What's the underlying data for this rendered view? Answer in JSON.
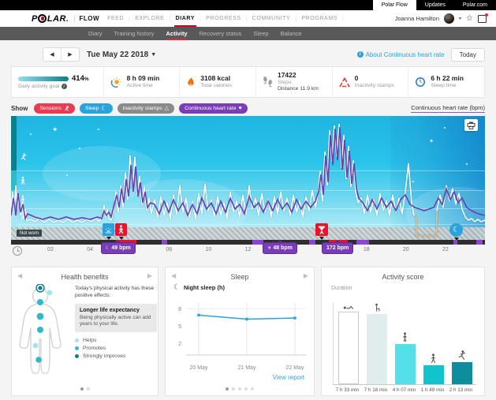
{
  "topbar": {
    "tabs": [
      "Polar Flow",
      "Updates",
      "Polar.com"
    ],
    "active_tab": "Polar Flow"
  },
  "nav": {
    "logo": {
      "p": "P",
      "lar": "LAR",
      "dot": ".",
      "flow": "FLOW"
    },
    "items": [
      "FEED",
      "EXPLORE",
      "DIARY",
      "PROGRESS",
      "COMMUNITY",
      "PROGRAMS"
    ],
    "active": "DIARY",
    "user_name": "Joanna Hamilton"
  },
  "subnav": {
    "items": [
      "Diary",
      "Training history",
      "Activity",
      "Recovery status",
      "Sleep",
      "Balance"
    ],
    "active": "Activity"
  },
  "date_row": {
    "date": "Tue May 22 2018",
    "about_link": "About Continuous heart rate",
    "today_button": "Today"
  },
  "stats": {
    "goal": {
      "value": "414",
      "unit": "%",
      "label": "Daily activity goal"
    },
    "active_time": {
      "value": "8 h 09 min",
      "label": "Active time"
    },
    "calories": {
      "value": "3108 kcal",
      "label": "Total calories"
    },
    "steps": {
      "value": "17422",
      "label": "Steps",
      "sub": "Distance 11.9 km"
    },
    "inactivity": {
      "value": "0",
      "label": "Inactivity stamps"
    },
    "sleep": {
      "value": "6 h 22 min",
      "label": "Sleep time"
    }
  },
  "filters": {
    "show_label": "Show",
    "pills": [
      {
        "label": "Sessions",
        "color": "#e83c55",
        "icon": "runner-icon"
      },
      {
        "label": "Sleep",
        "color": "#2aa3dc",
        "icon": "moon-icon"
      },
      {
        "label": "Inactivity stamps",
        "color": "#8a8a8a",
        "icon": "warning-icon"
      },
      {
        "label": "Continuous heart rate",
        "color": "#7a3db8",
        "icon": "heart-icon"
      }
    ],
    "axis_link": "Continuous heart rate (bpm)"
  },
  "chart": {
    "not_worn_label": "Not worn",
    "hours": [
      "02",
      "04",
      "06",
      "08",
      "10",
      "12",
      "14",
      "16",
      "18",
      "20",
      "22"
    ],
    "bpm_markers": [
      {
        "label": "49 bpm",
        "icon": "moon"
      },
      {
        "label": "48 bpm",
        "icon": "sun"
      },
      {
        "label": "172 bpm",
        "icon": ""
      }
    ]
  },
  "cards": {
    "health": {
      "title": "Health benefits",
      "intro": "Today's physical activity has these positive effects:",
      "highlight_title": "Longer life expectancy",
      "highlight_body": "Being physically active can add years to your life.",
      "legend": [
        {
          "label": "Helps",
          "color": "#9fe4ef"
        },
        {
          "label": "Promotes",
          "color": "#2fb9c9"
        },
        {
          "label": "Strongly improves",
          "color": "#0b7f8c"
        }
      ]
    },
    "sleep": {
      "title": "Sleep",
      "series_label": "Night sleep (h)",
      "view_report": "View report"
    },
    "score": {
      "title": "Activity score",
      "duration_label": "Duration"
    }
  },
  "chart_data": [
    {
      "type": "line",
      "title": "Continuous heart rate (bpm)",
      "x_hours": [
        "02",
        "04",
        "06",
        "08",
        "10",
        "12",
        "14",
        "16",
        "18",
        "20",
        "22"
      ],
      "annotations": [
        "49 bpm (night low)",
        "48 bpm (day low)",
        "172 bpm (max)"
      ],
      "overlays": [
        "Sessions",
        "Sleep",
        "Inactivity stamps",
        "Not worn"
      ]
    },
    {
      "type": "line",
      "title": "Night sleep (h)",
      "categories": [
        "20 May",
        "21 May",
        "22 May"
      ],
      "values": [
        6.9,
        6.2,
        6.4
      ],
      "yticks": [
        8,
        5,
        2
      ],
      "ylim": [
        0,
        9
      ],
      "line_color": "#2aa3dc"
    },
    {
      "type": "bar",
      "title": "Activity score — Duration",
      "categories": [
        "7 h 33 min",
        "7 h 18 min",
        "4 h 07 min",
        "1 h 49 min",
        "2 h 13 min"
      ],
      "values_minutes": [
        453,
        438,
        247,
        109,
        133
      ],
      "icons": [
        "lying",
        "sitting",
        "standing",
        "walking",
        "running"
      ],
      "colors": [
        "#ffffff",
        "#dfeeed",
        "#55dfe9",
        "#10c3cd",
        "#0d8d9e"
      ],
      "first_bar_border": "#c9c9c9"
    }
  ]
}
